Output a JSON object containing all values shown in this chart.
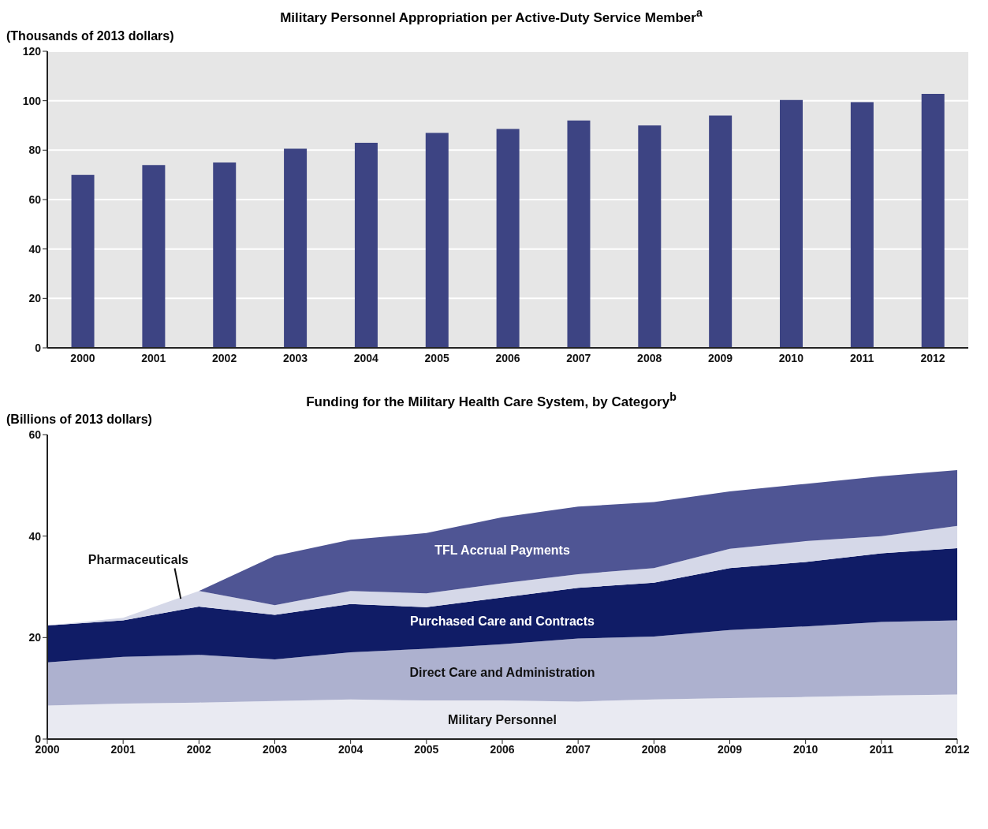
{
  "chart_data": [
    {
      "type": "bar",
      "title": "Military Personnel Appropriation per Active-Duty Service Member$^{a}$",
      "ylabel": "(Thousands of 2013 dollars)",
      "categories": [
        "2000",
        "2001",
        "2002",
        "2003",
        "2004",
        "2005",
        "2006",
        "2007",
        "2008",
        "2009",
        "2010",
        "2011",
        "2012"
      ],
      "values": [
        70,
        74,
        75,
        80.6,
        83,
        87,
        88.6,
        92,
        90,
        94,
        100.3,
        99.4,
        102.8
      ],
      "color": "#3d4483",
      "ylim": [
        0,
        120
      ],
      "yticks": [
        0,
        20,
        40,
        60,
        80,
        100,
        120
      ],
      "grid": "y"
    },
    {
      "type": "area",
      "title": "Funding for the Military Health Care System, by Category$^{b}$",
      "ylabel": "(Billions of 2013 dollars)",
      "stacked": true,
      "x": [
        2000,
        2001,
        2002,
        2003,
        2004,
        2005,
        2006,
        2007,
        2008,
        2009,
        2010,
        2011,
        2012
      ],
      "xlim": [
        2000,
        2012
      ],
      "xticks": [
        2000,
        2001,
        2002,
        2003,
        2004,
        2005,
        2006,
        2007,
        2008,
        2009,
        2010,
        2011,
        2012
      ],
      "ylim": [
        0,
        60
      ],
      "yticks": [
        0,
        20,
        40,
        60
      ],
      "series": [
        {
          "name": "Military Personnel",
          "color": "#e9eaf2",
          "values": [
            6.6,
            7.0,
            7.2,
            7.5,
            7.8,
            7.6,
            7.6,
            7.4,
            7.8,
            8.1,
            8.3,
            8.6,
            8.8
          ]
        },
        {
          "name": "Direct Care and Administration",
          "color": "#adb1cf",
          "values": [
            8.5,
            9.2,
            9.4,
            8.2,
            9.3,
            10.2,
            11.1,
            12.4,
            12.4,
            13.4,
            13.9,
            14.5,
            14.6
          ]
        },
        {
          "name": "Purchased Care and Contracts",
          "color": "#101c66",
          "values": [
            7.3,
            7.2,
            9.5,
            8.8,
            9.5,
            8.2,
            9.2,
            10,
            10.6,
            12.2,
            12.7,
            13.5,
            14.2
          ]
        },
        {
          "name": "Pharmaceuticals",
          "color": "#d5d8e8",
          "values": [
            0,
            0.5,
            3.1,
            1.9,
            2.6,
            2.7,
            2.8,
            2.7,
            2.9,
            3.8,
            4.1,
            3.4,
            4.4
          ]
        },
        {
          "name": "TFL Accrual Payments",
          "color": "#4f5594",
          "values": [
            0,
            0,
            0,
            9.7,
            10.1,
            11.9,
            13.0,
            13.3,
            13.0,
            11.3,
            11.3,
            11.8,
            11.0
          ]
        }
      ]
    }
  ]
}
